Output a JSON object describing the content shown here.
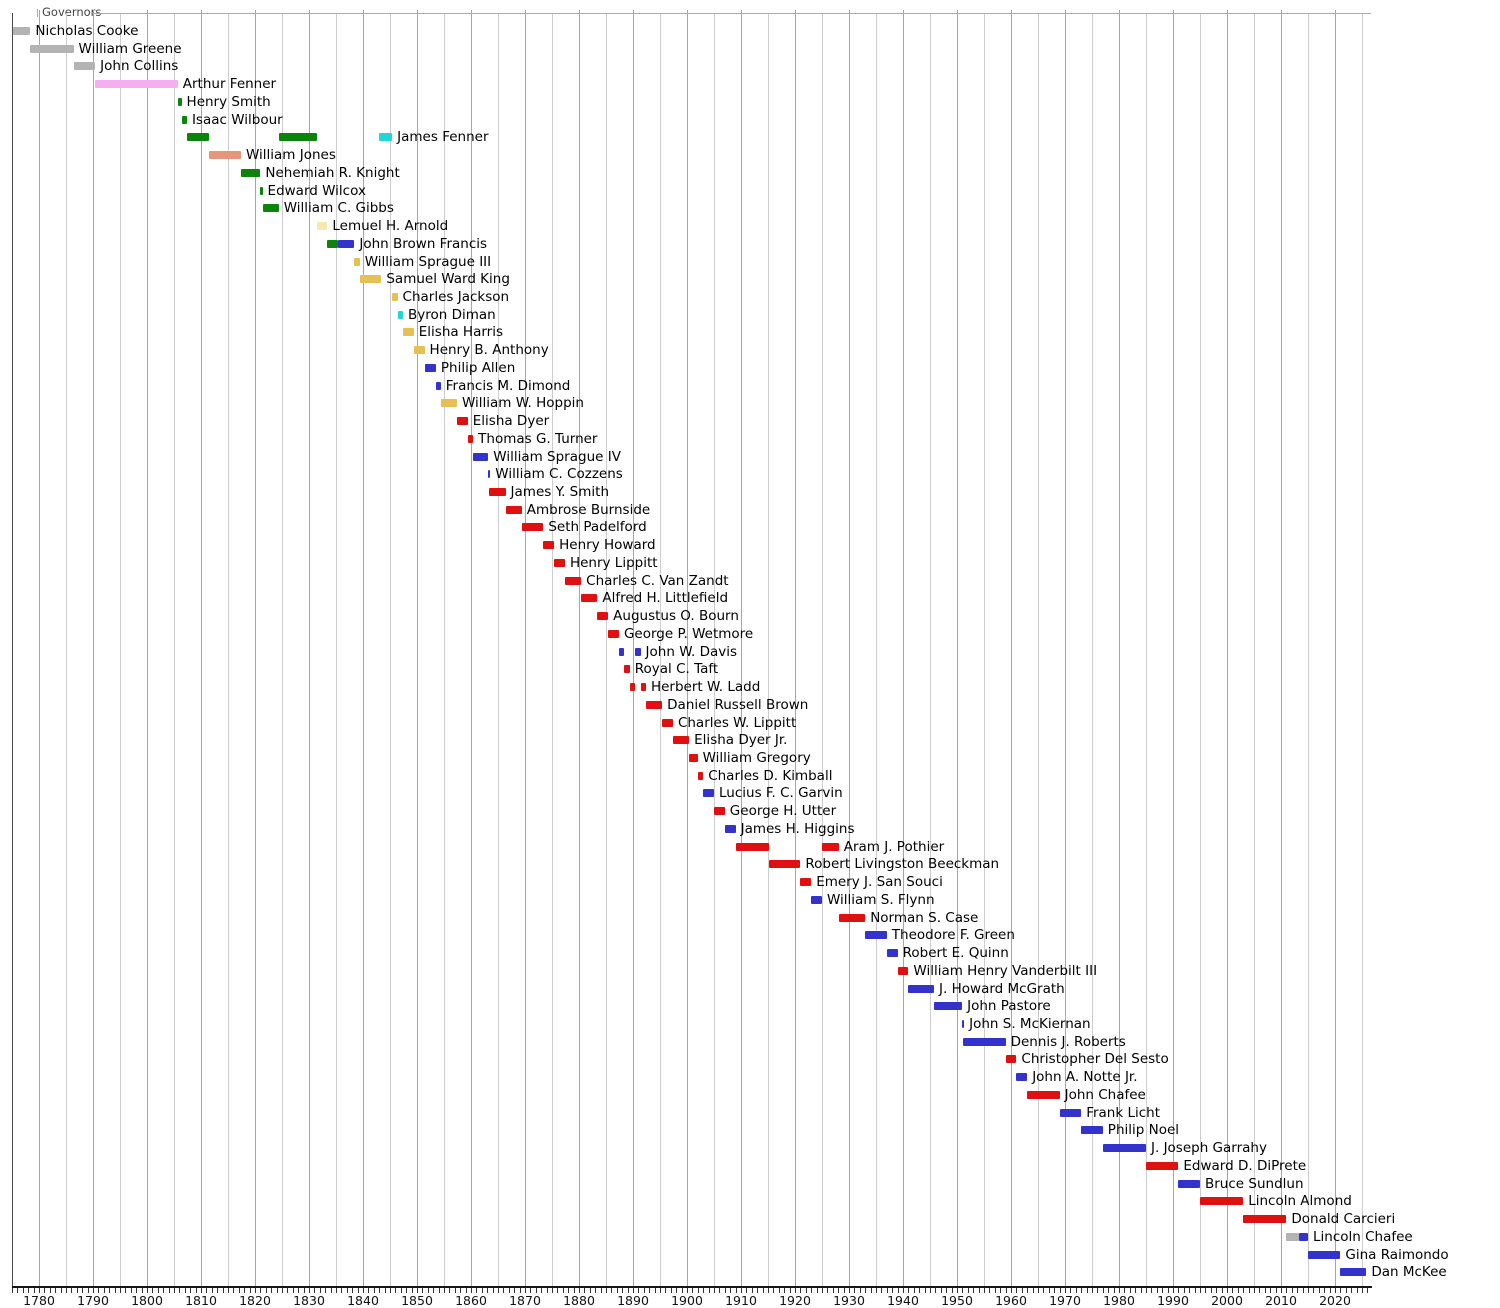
{
  "chart_data": {
    "type": "timeline",
    "title": "Governors",
    "x_axis": {
      "start": 1775,
      "end": 2026.8,
      "gridline_step_years": 5,
      "year_tick_step": 1,
      "tick_labels": [
        "1780",
        "1790",
        "1800",
        "1810",
        "1820",
        "1830",
        "1840",
        "1850",
        "1860",
        "1870",
        "1880",
        "1890",
        "1900",
        "1910",
        "1920",
        "1930",
        "1940",
        "1950",
        "1960",
        "1970",
        "1980",
        "1990",
        "2000",
        "2010",
        "2020"
      ],
      "grid": true
    },
    "colors": {
      "gray": "#b3b3b3",
      "pink": "#f5aef2",
      "green": "#0a840a",
      "salmon": "#e6967a",
      "cyan": "#1fd7d7",
      "paleyellow": "#f6e8a9",
      "gold": "#e6c054",
      "blue": "#3333cc",
      "red": "#e11010"
    },
    "governors": [
      {
        "name": "Nicholas Cooke",
        "bars": [
          {
            "start": 1775.2,
            "end": 1778.4,
            "color": "gray"
          }
        ]
      },
      {
        "name": "William Greene",
        "bars": [
          {
            "start": 1778.4,
            "end": 1786.4,
            "color": "gray"
          }
        ]
      },
      {
        "name": "John Collins",
        "bars": [
          {
            "start": 1786.4,
            "end": 1790.4,
            "color": "gray"
          }
        ]
      },
      {
        "name": "Arthur Fenner",
        "bars": [
          {
            "start": 1790.3,
            "end": 1805.7,
            "color": "pink"
          }
        ]
      },
      {
        "name": "Henry Smith",
        "bars": [
          {
            "start": 1805.7,
            "end": 1806.4,
            "color": "green"
          }
        ]
      },
      {
        "name": "Isaac Wilbour",
        "bars": [
          {
            "start": 1806.4,
            "end": 1807.4,
            "color": "green"
          }
        ]
      },
      {
        "name": "James Fenner",
        "bars": [
          {
            "start": 1807.4,
            "end": 1811.4,
            "color": "green"
          },
          {
            "start": 1824.4,
            "end": 1831.4,
            "color": "green"
          },
          {
            "start": 1842.9,
            "end": 1845.4,
            "color": "cyan"
          }
        ]
      },
      {
        "name": "William Jones",
        "bars": [
          {
            "start": 1811.4,
            "end": 1817.4,
            "color": "salmon"
          }
        ]
      },
      {
        "name": "Nehemiah R. Knight",
        "bars": [
          {
            "start": 1817.4,
            "end": 1821.0,
            "color": "green"
          }
        ]
      },
      {
        "name": "Edward Wilcox",
        "bars": [
          {
            "start": 1821.0,
            "end": 1821.4,
            "color": "green"
          }
        ]
      },
      {
        "name": "William C. Gibbs",
        "bars": [
          {
            "start": 1821.4,
            "end": 1824.4,
            "color": "green"
          }
        ]
      },
      {
        "name": "Lemuel H. Arnold",
        "bars": [
          {
            "start": 1831.4,
            "end": 1833.4,
            "color": "paleyellow"
          }
        ]
      },
      {
        "name": "John Brown Francis",
        "bars": [
          {
            "start": 1833.4,
            "end": 1835.3,
            "color": "green"
          },
          {
            "start": 1835.3,
            "end": 1838.4,
            "color": "blue"
          }
        ]
      },
      {
        "name": "William Sprague III",
        "bars": [
          {
            "start": 1838.4,
            "end": 1839.4,
            "color": "gold"
          }
        ]
      },
      {
        "name": "Samuel Ward King",
        "bars": [
          {
            "start": 1839.4,
            "end": 1843.4,
            "color": "gold"
          }
        ]
      },
      {
        "name": "Charles Jackson",
        "bars": [
          {
            "start": 1845.4,
            "end": 1846.4,
            "color": "gold"
          }
        ]
      },
      {
        "name": "Byron Diman",
        "bars": [
          {
            "start": 1846.4,
            "end": 1847.4,
            "color": "cyan"
          }
        ]
      },
      {
        "name": "Elisha Harris",
        "bars": [
          {
            "start": 1847.4,
            "end": 1849.4,
            "color": "gold"
          }
        ]
      },
      {
        "name": "Henry B. Anthony",
        "bars": [
          {
            "start": 1849.4,
            "end": 1851.4,
            "color": "gold"
          }
        ]
      },
      {
        "name": "Philip Allen",
        "bars": [
          {
            "start": 1851.4,
            "end": 1853.5,
            "color": "blue"
          }
        ]
      },
      {
        "name": "Francis M. Dimond",
        "bars": [
          {
            "start": 1853.5,
            "end": 1854.4,
            "color": "blue"
          }
        ]
      },
      {
        "name": "William W. Hoppin",
        "bars": [
          {
            "start": 1854.4,
            "end": 1857.4,
            "color": "gold"
          }
        ]
      },
      {
        "name": "Elisha Dyer",
        "bars": [
          {
            "start": 1857.4,
            "end": 1859.4,
            "color": "red"
          }
        ]
      },
      {
        "name": "Thomas G. Turner",
        "bars": [
          {
            "start": 1859.4,
            "end": 1860.4,
            "color": "red"
          }
        ]
      },
      {
        "name": "William Sprague IV",
        "bars": [
          {
            "start": 1860.4,
            "end": 1863.2,
            "color": "blue"
          }
        ]
      },
      {
        "name": "William C. Cozzens",
        "bars": [
          {
            "start": 1863.2,
            "end": 1863.4,
            "color": "blue"
          }
        ]
      },
      {
        "name": "James Y. Smith",
        "bars": [
          {
            "start": 1863.4,
            "end": 1866.4,
            "color": "red"
          }
        ]
      },
      {
        "name": "Ambrose Burnside",
        "bars": [
          {
            "start": 1866.4,
            "end": 1869.4,
            "color": "red"
          }
        ]
      },
      {
        "name": "Seth Padelford",
        "bars": [
          {
            "start": 1869.4,
            "end": 1873.4,
            "color": "red"
          }
        ]
      },
      {
        "name": "Henry Howard",
        "bars": [
          {
            "start": 1873.4,
            "end": 1875.4,
            "color": "red"
          }
        ]
      },
      {
        "name": "Henry Lippitt",
        "bars": [
          {
            "start": 1875.4,
            "end": 1877.4,
            "color": "red"
          }
        ]
      },
      {
        "name": "Charles C. Van Zandt",
        "bars": [
          {
            "start": 1877.4,
            "end": 1880.4,
            "color": "red"
          }
        ]
      },
      {
        "name": "Alfred H. Littlefield",
        "bars": [
          {
            "start": 1880.4,
            "end": 1883.4,
            "color": "red"
          }
        ]
      },
      {
        "name": "Augustus O. Bourn",
        "bars": [
          {
            "start": 1883.4,
            "end": 1885.4,
            "color": "red"
          }
        ]
      },
      {
        "name": "George P. Wetmore",
        "bars": [
          {
            "start": 1885.4,
            "end": 1887.4,
            "color": "red"
          }
        ]
      },
      {
        "name": "John W. Davis",
        "bars": [
          {
            "start": 1887.4,
            "end": 1888.4,
            "color": "blue"
          },
          {
            "start": 1890.4,
            "end": 1891.4,
            "color": "blue"
          }
        ]
      },
      {
        "name": "Royal C. Taft",
        "bars": [
          {
            "start": 1888.4,
            "end": 1889.4,
            "color": "red"
          }
        ]
      },
      {
        "name": "Herbert W. Ladd",
        "bars": [
          {
            "start": 1889.4,
            "end": 1890.4,
            "color": "red"
          },
          {
            "start": 1891.4,
            "end": 1892.4,
            "color": "red"
          }
        ]
      },
      {
        "name": "Daniel Russell Brown",
        "bars": [
          {
            "start": 1892.4,
            "end": 1895.4,
            "color": "red"
          }
        ]
      },
      {
        "name": "Charles W. Lippitt",
        "bars": [
          {
            "start": 1895.4,
            "end": 1897.4,
            "color": "red"
          }
        ]
      },
      {
        "name": "Elisha Dyer Jr.",
        "bars": [
          {
            "start": 1897.4,
            "end": 1900.4,
            "color": "red"
          }
        ]
      },
      {
        "name": "William Gregory",
        "bars": [
          {
            "start": 1900.4,
            "end": 1901.96,
            "color": "red"
          }
        ]
      },
      {
        "name": "Charles D. Kimball",
        "bars": [
          {
            "start": 1901.96,
            "end": 1903.0,
            "color": "red"
          }
        ]
      },
      {
        "name": "Lucius F. C. Garvin",
        "bars": [
          {
            "start": 1903.0,
            "end": 1905.0,
            "color": "blue"
          }
        ]
      },
      {
        "name": "George H. Utter",
        "bars": [
          {
            "start": 1905.0,
            "end": 1907.0,
            "color": "red"
          }
        ]
      },
      {
        "name": "James H. Higgins",
        "bars": [
          {
            "start": 1907.0,
            "end": 1909.0,
            "color": "blue"
          }
        ]
      },
      {
        "name": "Aram J. Pothier",
        "bars": [
          {
            "start": 1909.0,
            "end": 1915.1,
            "color": "red"
          },
          {
            "start": 1925.0,
            "end": 1928.1,
            "color": "red"
          }
        ]
      },
      {
        "name": "Robert Livingston Beeckman",
        "bars": [
          {
            "start": 1915.1,
            "end": 1921.0,
            "color": "red"
          }
        ]
      },
      {
        "name": "Emery J. San Souci",
        "bars": [
          {
            "start": 1921.0,
            "end": 1923.0,
            "color": "red"
          }
        ]
      },
      {
        "name": "William S. Flynn",
        "bars": [
          {
            "start": 1923.0,
            "end": 1925.0,
            "color": "blue"
          }
        ]
      },
      {
        "name": "Norman S. Case",
        "bars": [
          {
            "start": 1928.1,
            "end": 1933.0,
            "color": "red"
          }
        ]
      },
      {
        "name": "Theodore F. Green",
        "bars": [
          {
            "start": 1933.0,
            "end": 1937.0,
            "color": "blue"
          }
        ]
      },
      {
        "name": "Robert E. Quinn",
        "bars": [
          {
            "start": 1937.0,
            "end": 1939.0,
            "color": "blue"
          }
        ]
      },
      {
        "name": "William Henry Vanderbilt III",
        "bars": [
          {
            "start": 1939.0,
            "end": 1941.0,
            "color": "red"
          }
        ]
      },
      {
        "name": "J. Howard McGrath",
        "bars": [
          {
            "start": 1941.0,
            "end": 1945.75,
            "color": "blue"
          }
        ]
      },
      {
        "name": "John Pastore",
        "bars": [
          {
            "start": 1945.75,
            "end": 1950.95,
            "color": "blue"
          }
        ]
      },
      {
        "name": "John S. McKiernan",
        "bars": [
          {
            "start": 1950.95,
            "end": 1951.1,
            "color": "blue"
          }
        ]
      },
      {
        "name": "Dennis J. Roberts",
        "bars": [
          {
            "start": 1951.1,
            "end": 1959.0,
            "color": "blue"
          }
        ]
      },
      {
        "name": "Christopher Del Sesto",
        "bars": [
          {
            "start": 1959.0,
            "end": 1961.0,
            "color": "red"
          }
        ]
      },
      {
        "name": "John A. Notte Jr.",
        "bars": [
          {
            "start": 1961.0,
            "end": 1963.0,
            "color": "blue"
          }
        ]
      },
      {
        "name": "John Chafee",
        "bars": [
          {
            "start": 1963.0,
            "end": 1969.0,
            "color": "red"
          }
        ]
      },
      {
        "name": "Frank Licht",
        "bars": [
          {
            "start": 1969.0,
            "end": 1973.0,
            "color": "blue"
          }
        ]
      },
      {
        "name": "Philip Noel",
        "bars": [
          {
            "start": 1973.0,
            "end": 1977.0,
            "color": "blue"
          }
        ]
      },
      {
        "name": "J. Joseph Garrahy",
        "bars": [
          {
            "start": 1977.0,
            "end": 1985.0,
            "color": "blue"
          }
        ]
      },
      {
        "name": "Edward D. DiPrete",
        "bars": [
          {
            "start": 1985.0,
            "end": 1991.0,
            "color": "red"
          }
        ]
      },
      {
        "name": "Bruce Sundlun",
        "bars": [
          {
            "start": 1991.0,
            "end": 1995.0,
            "color": "blue"
          }
        ]
      },
      {
        "name": "Lincoln Almond",
        "bars": [
          {
            "start": 1995.0,
            "end": 2003.0,
            "color": "red"
          }
        ]
      },
      {
        "name": "Donald Carcieri",
        "bars": [
          {
            "start": 2003.0,
            "end": 2011.0,
            "color": "red"
          }
        ]
      },
      {
        "name": "Lincoln Chafee",
        "bars": [
          {
            "start": 2011.0,
            "end": 2013.4,
            "color": "gray"
          },
          {
            "start": 2013.4,
            "end": 2015.0,
            "color": "blue"
          }
        ]
      },
      {
        "name": "Gina Raimondo",
        "bars": [
          {
            "start": 2015.0,
            "end": 2021.0,
            "color": "blue"
          }
        ]
      },
      {
        "name": "Dan McKee",
        "bars": [
          {
            "start": 2021.0,
            "end": 2025.8,
            "color": "blue"
          }
        ]
      }
    ]
  }
}
